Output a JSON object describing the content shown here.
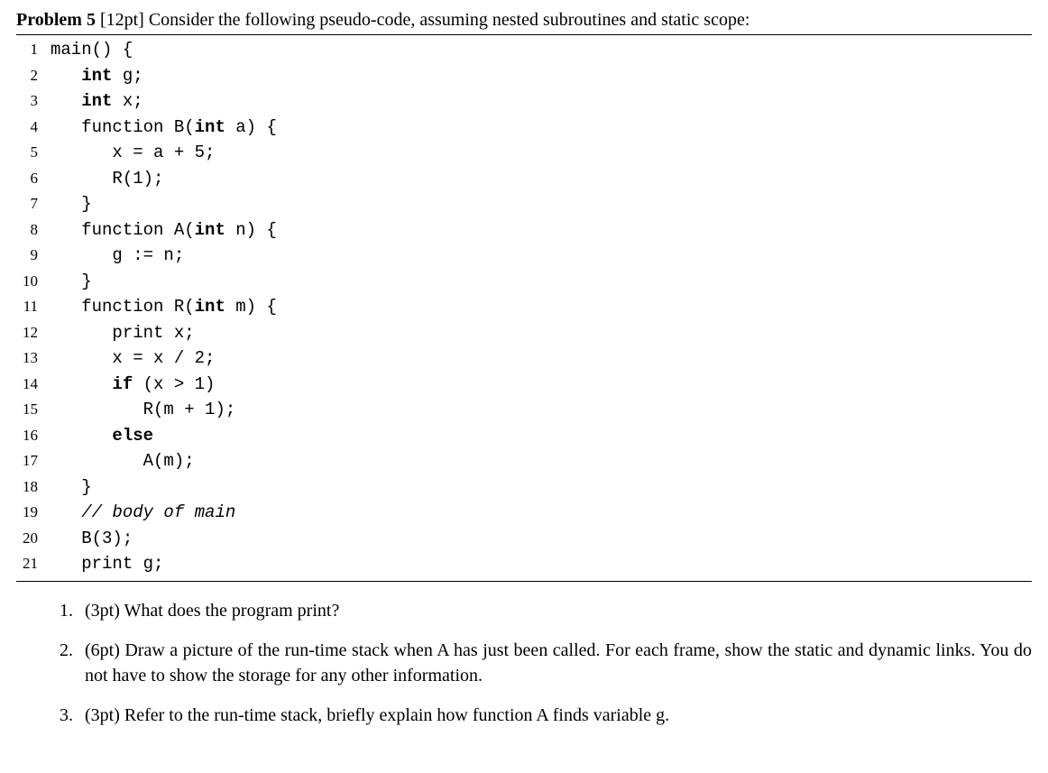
{
  "header": {
    "label": "Problem 5",
    "points": "[12pt]",
    "description": "Consider the following pseudo-code, assuming nested subroutines and static scope:"
  },
  "code": [
    {
      "n": "1",
      "indent": 0,
      "tokens": [
        {
          "t": "main() {",
          "kw": false
        }
      ]
    },
    {
      "n": "2",
      "indent": 1,
      "tokens": [
        {
          "t": "int",
          "kw": true
        },
        {
          "t": " g;",
          "kw": false
        }
      ]
    },
    {
      "n": "3",
      "indent": 1,
      "tokens": [
        {
          "t": "int",
          "kw": true
        },
        {
          "t": " x;",
          "kw": false
        }
      ]
    },
    {
      "n": "4",
      "indent": 1,
      "tokens": [
        {
          "t": "function B(",
          "kw": false
        },
        {
          "t": "int",
          "kw": true
        },
        {
          "t": " a) {",
          "kw": false
        }
      ]
    },
    {
      "n": "5",
      "indent": 2,
      "tokens": [
        {
          "t": "x = a + 5;",
          "kw": false
        }
      ]
    },
    {
      "n": "6",
      "indent": 2,
      "tokens": [
        {
          "t": "R(1);",
          "kw": false
        }
      ]
    },
    {
      "n": "7",
      "indent": 1,
      "tokens": [
        {
          "t": "}",
          "kw": false
        }
      ]
    },
    {
      "n": "8",
      "indent": 1,
      "tokens": [
        {
          "t": "function A(",
          "kw": false
        },
        {
          "t": "int",
          "kw": true
        },
        {
          "t": " n) {",
          "kw": false
        }
      ]
    },
    {
      "n": "9",
      "indent": 2,
      "tokens": [
        {
          "t": "g := n;",
          "kw": false
        }
      ]
    },
    {
      "n": "10",
      "indent": 1,
      "tokens": [
        {
          "t": "}",
          "kw": false
        }
      ]
    },
    {
      "n": "11",
      "indent": 1,
      "tokens": [
        {
          "t": "function R(",
          "kw": false
        },
        {
          "t": "int",
          "kw": true
        },
        {
          "t": " m) {",
          "kw": false
        }
      ]
    },
    {
      "n": "12",
      "indent": 2,
      "tokens": [
        {
          "t": "print x;",
          "kw": false
        }
      ]
    },
    {
      "n": "13",
      "indent": 2,
      "tokens": [
        {
          "t": "x = x / 2;",
          "kw": false
        }
      ]
    },
    {
      "n": "14",
      "indent": 2,
      "tokens": [
        {
          "t": "if",
          "kw": true
        },
        {
          "t": " (x > 1)",
          "kw": false
        }
      ]
    },
    {
      "n": "15",
      "indent": 3,
      "tokens": [
        {
          "t": "R(m + 1);",
          "kw": false
        }
      ]
    },
    {
      "n": "16",
      "indent": 2,
      "tokens": [
        {
          "t": "else",
          "kw": true
        }
      ]
    },
    {
      "n": "17",
      "indent": 3,
      "tokens": [
        {
          "t": "A(m);",
          "kw": false
        }
      ]
    },
    {
      "n": "18",
      "indent": 1,
      "tokens": [
        {
          "t": "}",
          "kw": false
        }
      ]
    },
    {
      "n": "19",
      "indent": 1,
      "tokens": [
        {
          "t": "// body of main",
          "kw": false,
          "italic": true
        }
      ]
    },
    {
      "n": "20",
      "indent": 1,
      "tokens": [
        {
          "t": "B(3);",
          "kw": false
        }
      ]
    },
    {
      "n": "21",
      "indent": 1,
      "tokens": [
        {
          "t": "print g;",
          "kw": false
        }
      ]
    }
  ],
  "questions": [
    {
      "num": "1.",
      "text": "(3pt) What does the program print?"
    },
    {
      "num": "2.",
      "text": "(6pt) Draw a picture of the run-time stack when A has just been called. For each frame, show the static and dynamic links. You do not have to show the storage for any other information."
    },
    {
      "num": "3.",
      "text": "(3pt) Refer to the run-time stack, briefly explain how function A finds variable g."
    }
  ],
  "style": {
    "indent_unit": "   ",
    "body_bg": "#ffffff",
    "text_color": "#000000",
    "code_font": "Courier New",
    "body_font": "Georgia",
    "body_fontsize": 20,
    "code_fontsize": 19,
    "linenum_fontsize": 17
  }
}
